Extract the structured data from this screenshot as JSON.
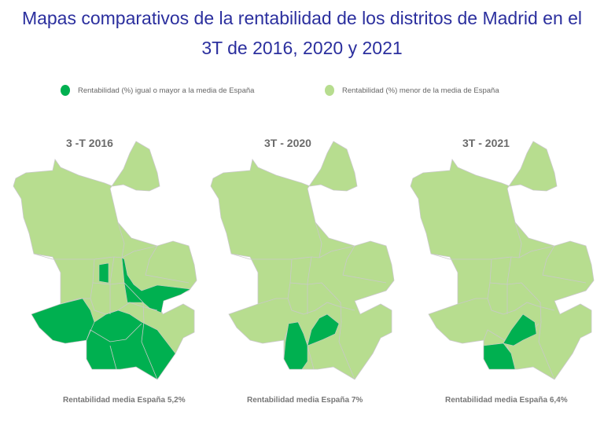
{
  "title_line1": "Mapas comparativos de la rentabilidad de los distritos de Madrid en el",
  "title_line2": "3T de 2016, 2020 y 2021",
  "legend": [
    {
      "label": "Rentabilidad (%) igual o mayor a la media de España",
      "color": "#00b050"
    },
    {
      "label": "Rentabilidad (%) menor de la media de España",
      "color": "#b7dd8f"
    }
  ],
  "maps": [
    {
      "title": "3 -T 2016",
      "footer": "Rentabilidad media España 5,2%"
    },
    {
      "title": "3T - 2020",
      "footer": "Rentabilidad media España 7%"
    },
    {
      "title": "3T - 2021",
      "footer": "Rentabilidad media España 6,4%"
    }
  ]
}
